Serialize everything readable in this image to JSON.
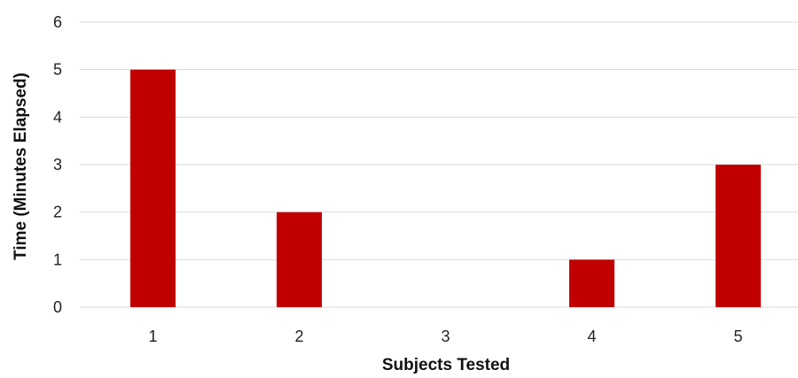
{
  "chart_data": {
    "type": "bar",
    "categories": [
      "1",
      "2",
      "3",
      "4",
      "5"
    ],
    "values": [
      5,
      2,
      0,
      1,
      3
    ],
    "xlabel": "Subjects Tested",
    "ylabel": "Time (Minutes Elapsed)",
    "ylim": [
      0,
      6
    ],
    "yticks": [
      "0",
      "1",
      "2",
      "3",
      "4",
      "5",
      "6"
    ],
    "grid": true,
    "bar_color": "#c00000",
    "grid_color": "#d9d9d9"
  }
}
